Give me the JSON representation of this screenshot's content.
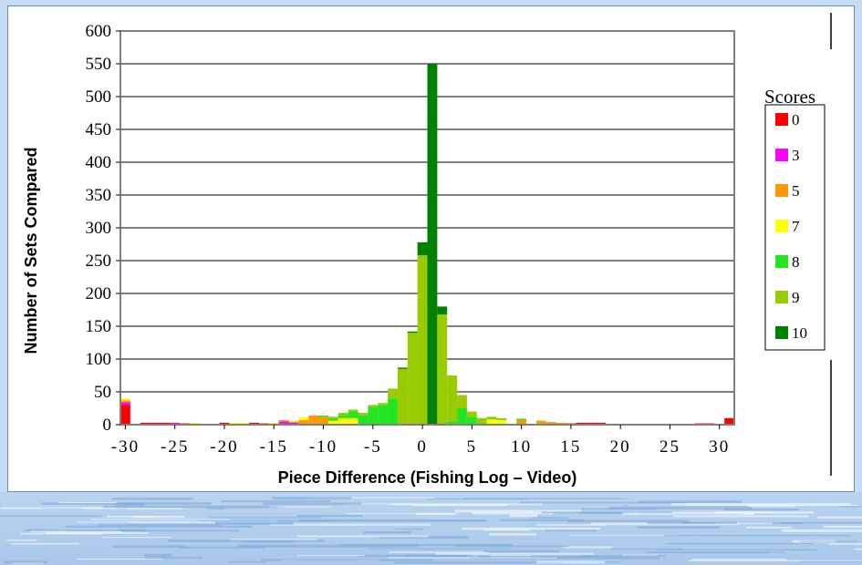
{
  "chart_data": {
    "type": "bar",
    "stacked": true,
    "xlabel": "Piece Difference (Fishing Log – Video)",
    "ylabel": "Number of Sets Compared",
    "ylim": [
      0,
      600
    ],
    "xlim": [
      -30.5,
      31.5
    ],
    "yticks": [
      0,
      50,
      100,
      150,
      200,
      250,
      300,
      350,
      400,
      450,
      500,
      550,
      600
    ],
    "xticks": [
      -30,
      -25,
      -20,
      -15,
      -10,
      -5,
      0,
      5,
      10,
      15,
      20,
      25,
      30
    ],
    "xtick_labels": [
      "-30",
      "-25",
      "-20",
      "-15",
      "-10",
      "-5",
      "0",
      "5",
      "10",
      "15",
      "20",
      "25",
      "30"
    ],
    "grid": "horizontal",
    "legend": {
      "title": "Scores",
      "placement": "right"
    },
    "x": [
      -30,
      -29,
      -28,
      -27,
      -26,
      -25,
      -24,
      -23,
      -22,
      -21,
      -20,
      -19,
      -18,
      -17,
      -16,
      -15,
      -14,
      -13,
      -12,
      -11,
      -10,
      -9,
      -8,
      -7,
      -6,
      -5,
      -4,
      -3,
      -2,
      -1,
      0,
      1,
      2,
      3,
      4,
      5,
      6,
      7,
      8,
      9,
      10,
      11,
      12,
      13,
      14,
      15,
      16,
      17,
      18,
      19,
      20,
      21,
      22,
      23,
      24,
      25,
      26,
      27,
      28,
      29,
      30,
      31
    ],
    "series": [
      {
        "name": "0",
        "color": "#ff0000",
        "values": [
          30,
          0,
          3,
          3,
          3,
          0,
          2,
          0,
          0,
          0,
          3,
          0,
          0,
          3,
          2,
          0,
          0,
          0,
          0,
          0,
          0,
          0,
          0,
          0,
          0,
          0,
          0,
          0,
          0,
          0,
          0,
          0,
          0,
          0,
          0,
          0,
          0,
          0,
          0,
          0,
          0,
          0,
          0,
          0,
          0,
          2,
          3,
          3,
          3,
          0,
          0,
          0,
          0,
          0,
          0,
          0,
          0,
          0,
          2,
          2,
          0,
          10
        ]
      },
      {
        "name": "3",
        "color": "#ff00ff",
        "values": [
          4,
          0,
          0,
          0,
          0,
          3,
          0,
          0,
          0,
          0,
          0,
          0,
          0,
          0,
          0,
          0,
          5,
          3,
          0,
          0,
          0,
          0,
          0,
          0,
          0,
          0,
          0,
          0,
          0,
          0,
          0,
          0,
          0,
          0,
          0,
          0,
          0,
          0,
          0,
          0,
          0,
          0,
          0,
          0,
          0,
          0,
          0,
          0,
          0,
          0,
          0,
          0,
          0,
          0,
          0,
          0,
          0,
          0,
          0,
          0,
          0,
          0
        ]
      },
      {
        "name": "5",
        "color": "#ff9900",
        "values": [
          3,
          0,
          0,
          0,
          0,
          0,
          0,
          0,
          0,
          0,
          0,
          0,
          0,
          0,
          0,
          0,
          2,
          2,
          7,
          14,
          12,
          0,
          0,
          0,
          0,
          0,
          0,
          0,
          0,
          0,
          0,
          0,
          0,
          0,
          0,
          0,
          0,
          0,
          0,
          0,
          7,
          0,
          6,
          4,
          3,
          0,
          0,
          0,
          0,
          0,
          0,
          0,
          0,
          0,
          0,
          0,
          0,
          0,
          0,
          0,
          0,
          0
        ]
      },
      {
        "name": "7",
        "color": "#ffff00",
        "values": [
          3,
          0,
          0,
          0,
          0,
          0,
          0,
          3,
          0,
          0,
          0,
          3,
          3,
          0,
          0,
          3,
          0,
          0,
          4,
          0,
          0,
          6,
          10,
          10,
          0,
          0,
          0,
          0,
          0,
          0,
          0,
          0,
          0,
          0,
          0,
          0,
          0,
          8,
          7,
          0,
          0,
          0,
          0,
          0,
          0,
          0,
          0,
          0,
          0,
          0,
          0,
          0,
          0,
          0,
          0,
          0,
          0,
          0,
          0,
          0,
          0,
          0
        ]
      },
      {
        "name": "8",
        "color": "#22e622",
        "values": [
          0,
          0,
          0,
          0,
          0,
          0,
          0,
          0,
          0,
          0,
          0,
          0,
          0,
          0,
          0,
          0,
          0,
          0,
          0,
          0,
          2,
          3,
          5,
          10,
          15,
          27,
          30,
          40,
          0,
          0,
          0,
          0,
          0,
          5,
          25,
          12,
          2,
          1,
          0,
          0,
          2,
          0,
          0,
          0,
          0,
          0,
          0,
          0,
          0,
          0,
          0,
          0,
          0,
          0,
          0,
          0,
          0,
          0,
          0,
          0,
          0,
          0
        ]
      },
      {
        "name": "9",
        "color": "#99cc00",
        "values": [
          0,
          0,
          0,
          0,
          0,
          0,
          0,
          0,
          0,
          0,
          0,
          0,
          0,
          0,
          0,
          0,
          0,
          0,
          0,
          0,
          0,
          3,
          3,
          3,
          3,
          3,
          3,
          15,
          85,
          140,
          258,
          0,
          168,
          70,
          20,
          8,
          8,
          3,
          3,
          0,
          0,
          0,
          0,
          0,
          0,
          0,
          0,
          0,
          0,
          0,
          0,
          0,
          0,
          0,
          0,
          0,
          0,
          0,
          0,
          0,
          0,
          0
        ]
      },
      {
        "name": "10",
        "color": "#008000",
        "values": [
          0,
          0,
          0,
          0,
          0,
          0,
          0,
          0,
          0,
          0,
          0,
          0,
          0,
          0,
          0,
          0,
          0,
          0,
          0,
          0,
          0,
          0,
          0,
          0,
          0,
          0,
          0,
          0,
          2,
          2,
          20,
          550,
          12,
          0,
          0,
          0,
          0,
          0,
          0,
          0,
          0,
          0,
          0,
          0,
          0,
          0,
          0,
          0,
          0,
          0,
          0,
          0,
          0,
          0,
          0,
          0,
          0,
          0,
          0,
          0,
          0,
          0
        ]
      }
    ]
  }
}
